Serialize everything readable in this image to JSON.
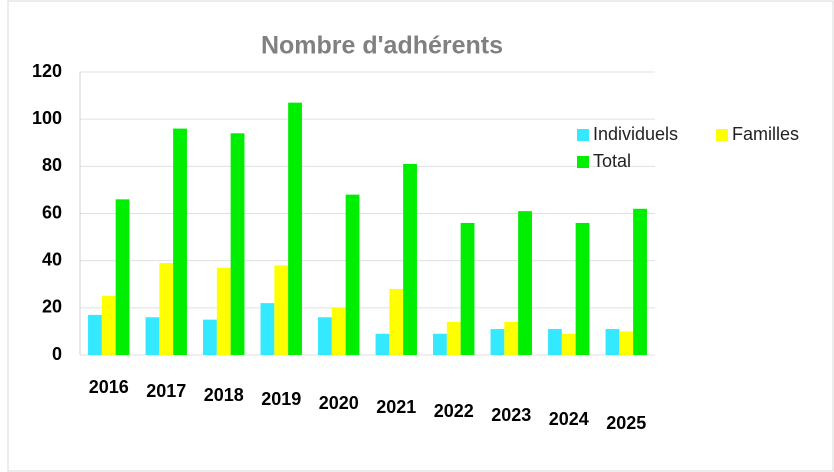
{
  "chart_data": {
    "type": "bar",
    "title": "Nombre d'adhérents",
    "categories": [
      "2016",
      "2017",
      "2018",
      "2019",
      "2020",
      "2021",
      "2022",
      "2023",
      "2024",
      "2025"
    ],
    "series": [
      {
        "name": "Individuels",
        "color": "#33e8ff",
        "values": [
          17,
          16,
          15,
          22,
          16,
          9,
          9,
          11,
          11,
          11
        ]
      },
      {
        "name": "Familles",
        "color": "#ffff00",
        "values": [
          25,
          39,
          37,
          38,
          20,
          28,
          14,
          14,
          9,
          10
        ]
      },
      {
        "name": "Total",
        "color": "#00ee00",
        "values": [
          66,
          96,
          94,
          107,
          68,
          81,
          56,
          61,
          56,
          62
        ]
      }
    ],
    "ylim": [
      0,
      120
    ],
    "yticks": [
      0,
      20,
      40,
      60,
      80,
      100,
      120
    ],
    "grid": true,
    "legend": "right"
  }
}
